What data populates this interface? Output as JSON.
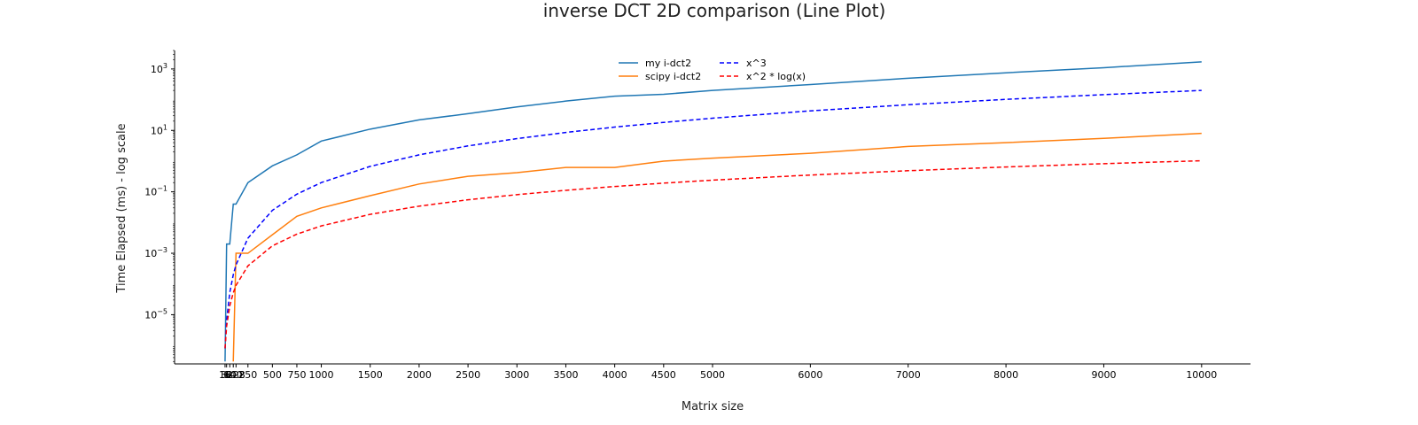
{
  "chart_data": {
    "type": "line",
    "title": "inverse DCT 2D comparison (Line Plot)",
    "xlabel": "Matrix size",
    "ylabel": "Time Elapsed (ms) - log scale",
    "yscale": "log",
    "xlim": [
      -500,
      10500
    ],
    "ylim": [
      2.5e-07,
      4000
    ],
    "grid": false,
    "legend": "top-center, two columns",
    "x_ticks": [
      16,
      32,
      64,
      100,
      128,
      250,
      500,
      750,
      1000,
      1500,
      2000,
      2500,
      3000,
      3500,
      4000,
      4500,
      5000,
      6000,
      7000,
      8000,
      9000,
      10000
    ],
    "x_tick_labels": [
      "16",
      "32",
      "64",
      "100",
      "128",
      "250",
      "500",
      "750",
      "1000",
      "1500",
      "2000",
      "2500",
      "3000",
      "3500",
      "4000",
      "4500",
      "5000",
      "6000",
      "7000",
      "8000",
      "9000",
      "10000"
    ],
    "y_ticks": [
      1e-05,
      0.001,
      0.1,
      10,
      1000
    ],
    "y_tick_labels": [
      {
        "base": "10",
        "exp": "−5"
      },
      {
        "base": "10",
        "exp": "−3"
      },
      {
        "base": "10",
        "exp": "−1"
      },
      {
        "base": "10",
        "exp": "1"
      },
      {
        "base": "10",
        "exp": "3"
      }
    ],
    "series": [
      {
        "name": "my i-dct2",
        "color": "#1f77b4",
        "style": "solid",
        "x": [
          16,
          32,
          64,
          100,
          128,
          250,
          500,
          750,
          1000,
          1500,
          2000,
          2500,
          3000,
          3500,
          4000,
          4500,
          5000,
          6000,
          7000,
          8000,
          9000,
          10000
        ],
        "y": [
          3e-07,
          0.002,
          0.002,
          0.04,
          0.04,
          0.2,
          0.7,
          1.6,
          4.5,
          11,
          22,
          35,
          58,
          90,
          130,
          150,
          200,
          310,
          500,
          750,
          1100,
          1700
        ]
      },
      {
        "name": "scipy i-dct2",
        "color": "#ff7f0e",
        "style": "solid",
        "x": [
          100,
          128,
          250,
          500,
          750,
          1000,
          1500,
          2000,
          2500,
          3000,
          3500,
          4000,
          4500,
          5000,
          6000,
          7000,
          8000,
          9000,
          10000
        ],
        "y": [
          3e-07,
          0.001,
          0.001,
          0.004,
          0.016,
          0.03,
          0.075,
          0.18,
          0.32,
          0.42,
          0.62,
          0.62,
          1.0,
          1.25,
          1.8,
          3.0,
          4.0,
          5.5,
          8.0
        ]
      },
      {
        "name": "x^3",
        "color": "#0000ff",
        "style": "dashed",
        "x": [
          16,
          32,
          64,
          100,
          128,
          250,
          500,
          750,
          1000,
          1500,
          2000,
          2500,
          3000,
          3500,
          4000,
          4500,
          5000,
          6000,
          7000,
          8000,
          9000,
          10000
        ],
        "y": [
          8e-07,
          6.6e-06,
          5.24e-05,
          0.0002,
          0.00042,
          0.0031,
          0.025,
          0.084,
          0.2,
          0.675,
          1.6,
          3.125,
          5.4,
          8.575,
          12.8,
          18.2,
          25,
          43.2,
          68.6,
          102.4,
          145.8,
          200
        ]
      },
      {
        "name": "x^2 * log(x)",
        "color": "#ff0000",
        "style": "dashed",
        "x": [
          16,
          32,
          64,
          100,
          128,
          250,
          500,
          750,
          1000,
          1500,
          2000,
          2500,
          3000,
          3500,
          4000,
          4500,
          5000,
          6000,
          7000,
          8000,
          9000,
          10000
        ],
        "y": [
          8e-07,
          4.2e-06,
          1.92e-05,
          5.18e-05,
          9.02e-05,
          0.000389,
          0.00175,
          0.00419,
          0.00778,
          0.0185,
          0.0342,
          0.0551,
          0.081,
          0.112,
          0.149,
          0.192,
          0.24,
          0.352,
          0.487,
          0.645,
          0.827,
          1.03
        ]
      }
    ]
  }
}
